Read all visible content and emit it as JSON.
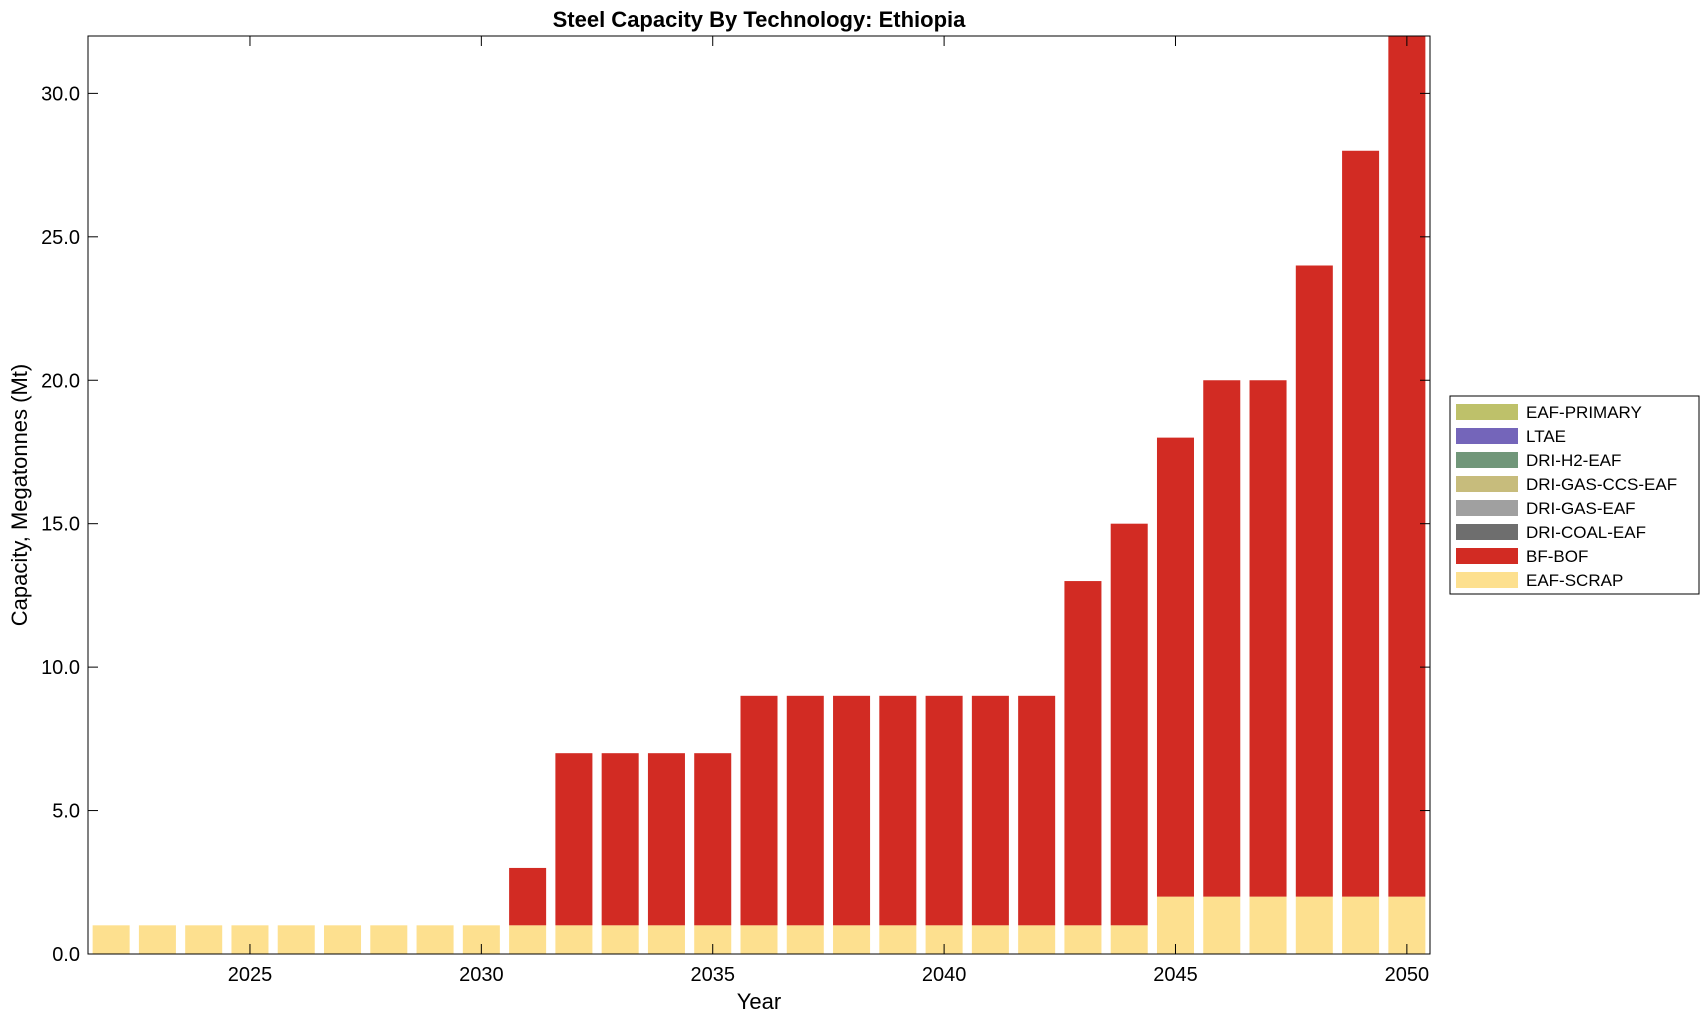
{
  "chart_data": {
    "type": "bar",
    "stacked": true,
    "title": "Steel Capacity By Technology: Ethiopia",
    "xlabel": "Year",
    "ylabel": "Capacity, Megatonnes (Mt)",
    "xlim": [
      2021.5,
      2050.5
    ],
    "ylim": [
      0,
      32
    ],
    "x": [
      2022,
      2023,
      2024,
      2025,
      2026,
      2027,
      2028,
      2029,
      2030,
      2031,
      2032,
      2033,
      2034,
      2035,
      2036,
      2037,
      2038,
      2039,
      2040,
      2041,
      2042,
      2043,
      2044,
      2045,
      2046,
      2047,
      2048,
      2049,
      2050
    ],
    "x_ticks": [
      2025,
      2030,
      2035,
      2040,
      2045,
      2050
    ],
    "x_tick_labels": [
      "2025",
      "2030",
      "2035",
      "2040",
      "2045",
      "2050"
    ],
    "y_ticks": [
      0,
      5,
      10,
      15,
      20,
      25,
      30
    ],
    "y_tick_labels": [
      "0.0",
      "5.0",
      "10.0",
      "15.0",
      "20.0",
      "25.0",
      "30.0"
    ],
    "legend_position": "right-middle",
    "series": [
      {
        "name": "EAF-SCRAP",
        "color": "#FDE08F",
        "values": [
          1,
          1,
          1,
          1,
          1,
          1,
          1,
          1,
          1,
          1,
          1,
          1,
          1,
          1,
          1,
          1,
          1,
          1,
          1,
          1,
          1,
          1,
          1,
          2,
          2,
          2,
          2,
          2,
          2
        ]
      },
      {
        "name": "BF-BOF",
        "color": "#D22B23",
        "values": [
          0,
          0,
          0,
          0,
          0,
          0,
          0,
          0,
          0,
          2,
          6,
          6,
          6,
          6,
          8,
          8,
          8,
          8,
          8,
          8,
          8,
          12,
          14,
          16,
          18,
          18,
          22,
          26,
          30
        ]
      },
      {
        "name": "DRI-COAL-EAF",
        "color": "#6E6E6E",
        "values": [
          0,
          0,
          0,
          0,
          0,
          0,
          0,
          0,
          0,
          0,
          0,
          0,
          0,
          0,
          0,
          0,
          0,
          0,
          0,
          0,
          0,
          0,
          0,
          0,
          0,
          0,
          0,
          0,
          0
        ]
      },
      {
        "name": "DRI-GAS-EAF",
        "color": "#A0A0A0",
        "values": [
          0,
          0,
          0,
          0,
          0,
          0,
          0,
          0,
          0,
          0,
          0,
          0,
          0,
          0,
          0,
          0,
          0,
          0,
          0,
          0,
          0,
          0,
          0,
          0,
          0,
          0,
          0,
          0,
          0
        ]
      },
      {
        "name": "DRI-GAS-CCS-EAF",
        "color": "#C7BC7C",
        "values": [
          0,
          0,
          0,
          0,
          0,
          0,
          0,
          0,
          0,
          0,
          0,
          0,
          0,
          0,
          0,
          0,
          0,
          0,
          0,
          0,
          0,
          0,
          0,
          0,
          0,
          0,
          0,
          0,
          0
        ]
      },
      {
        "name": "DRI-H2-EAF",
        "color": "#71977A",
        "values": [
          0,
          0,
          0,
          0,
          0,
          0,
          0,
          0,
          0,
          0,
          0,
          0,
          0,
          0,
          0,
          0,
          0,
          0,
          0,
          0,
          0,
          0,
          0,
          0,
          0,
          0,
          0,
          0,
          0
        ]
      },
      {
        "name": "LTAE",
        "color": "#7465BA",
        "values": [
          0,
          0,
          0,
          0,
          0,
          0,
          0,
          0,
          0,
          0,
          0,
          0,
          0,
          0,
          0,
          0,
          0,
          0,
          0,
          0,
          0,
          0,
          0,
          0,
          0,
          0,
          0,
          0,
          0
        ]
      },
      {
        "name": "EAF-PRIMARY",
        "color": "#BEC16A",
        "values": [
          0,
          0,
          0,
          0,
          0,
          0,
          0,
          0,
          0,
          0,
          0,
          0,
          0,
          0,
          0,
          0,
          0,
          0,
          0,
          0,
          0,
          0,
          0,
          0,
          0,
          0,
          0,
          0,
          0
        ]
      }
    ],
    "legend_order": [
      "EAF-PRIMARY",
      "LTAE",
      "DRI-H2-EAF",
      "DRI-GAS-CCS-EAF",
      "DRI-GAS-EAF",
      "DRI-COAL-EAF",
      "BF-BOF",
      "EAF-SCRAP"
    ]
  }
}
